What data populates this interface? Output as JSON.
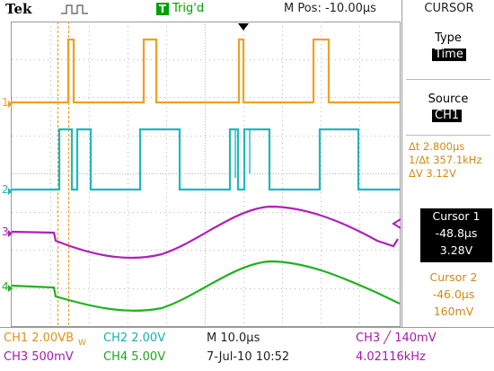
{
  "brand": "Tek",
  "trigger_status": "Trig'd",
  "trigger_status_icon": "T",
  "horizontal_position": "M Pos: -10.00µs",
  "menu_title": "CURSOR",
  "type": {
    "label": "Type",
    "value": "Time"
  },
  "source": {
    "label": "Source",
    "value": "CH1"
  },
  "readouts": {
    "delta_t": "Δt  2.800µs",
    "inv_delta_t": "1/Δt 357.1kHz",
    "delta_v": "ΔV  3.12V"
  },
  "cursor1": {
    "label": "Cursor 1",
    "time": "-48.8µs",
    "volts": "3.28V"
  },
  "cursor2": {
    "label": "Cursor 2",
    "time": "-46.0µs",
    "volts": "160mV"
  },
  "status_bar": {
    "ch1": "CH1  2.00VB",
    "ch1_bw": "W",
    "ch2": "CH2  2.00V",
    "ch3": "CH3  500mV",
    "ch4": "CH4  5.00V",
    "timebase": "M 10.0µs",
    "datetime": "7-Jul-10 10:52",
    "trigger": "CH3  ╱  140mV",
    "frequency": "4.02116kHz"
  },
  "channel_markers": {
    "ch1": "1",
    "ch2": "2",
    "ch3": "3",
    "ch4": "4"
  },
  "colors": {
    "ch1": "#f0a020",
    "ch2": "#20b8b8",
    "ch3": "#b020b8",
    "ch4": "#20b020",
    "grid": "#b0b0b0",
    "trigger": "#00a000"
  }
}
